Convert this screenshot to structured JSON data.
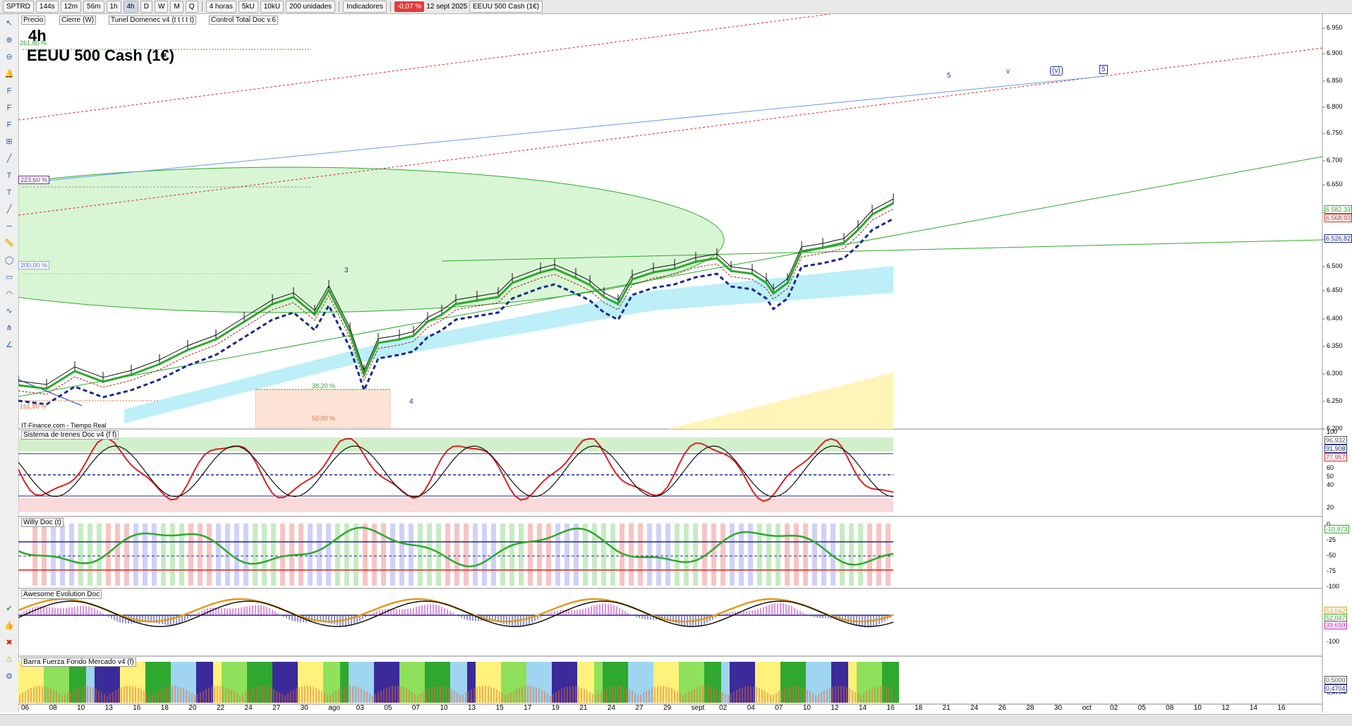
{
  "toolbar": {
    "symbol": "SPTRD",
    "intervals": [
      "144s",
      "12m",
      "56m",
      "1h",
      "4h",
      "D",
      "W",
      "M",
      "Q"
    ],
    "period": "4 horas",
    "b1": "5kU",
    "b2": "10kU",
    "units": "200 unidades",
    "indicators": "Indicadores",
    "change": "-0,07 %",
    "date": "12 sept 2025",
    "instrument": "EEUU 500 Cash (1€)"
  },
  "legend": {
    "price": "Precio",
    "close": "Cierre (W)",
    "tunnel": "Tunel Domenec v4 (t t t t t)",
    "control": "Control Total Doc v.6"
  },
  "chart": {
    "timeframe": "4h",
    "title": "EEUU 500 Cash (1€)",
    "source": "IT-Finance.com - Tiempo Real",
    "fib": [
      "261,80 %",
      "223,60 %",
      "200,00 %",
      "161,80 %",
      "38,20 %",
      "50,00 %"
    ],
    "waves": [
      "3",
      "4",
      "5",
      "v",
      "(v)",
      "5"
    ],
    "price_ticks": [
      "6.950",
      "6.900",
      "6.850",
      "6.800",
      "6.750",
      "6.700",
      "6.650",
      "6.600",
      "6.550",
      "6.500",
      "6.450",
      "6.400",
      "6.350",
      "6.300",
      "6.250",
      "6.200"
    ],
    "price_labels": [
      "6.582,33",
      "6.568,93",
      "6.526,82"
    ],
    "colors": {
      "up": "#2fa82f",
      "down": "#d42424",
      "blue": "#1a2a8c",
      "tag_green": "#2f9e2f",
      "tag_red": "#d43030"
    }
  },
  "panels": [
    {
      "title": "Sistema de trenes Doc v4 (f f)",
      "ticks": [
        "100",
        "80",
        "60",
        "50",
        "40",
        "20",
        "0"
      ],
      "labels": [
        "96,932",
        "91,908",
        "77,957"
      ]
    },
    {
      "title": "Willy Doc (t)",
      "ticks": [
        "-25",
        "-50",
        "-75",
        "-100"
      ],
      "labels": [
        "-10,973"
      ]
    },
    {
      "title": "Awesome Evolution Doc",
      "ticks": [
        "-50",
        "-100"
      ],
      "labels": [
        "53,042",
        "52,047",
        "39,699"
      ]
    },
    {
      "title": "Barra Fuerza Fondo Mercado v4 (f)",
      "ticks": [
        "0,5000",
        "0,4704"
      ],
      "labels": [
        "0,5000",
        "0,4704"
      ]
    }
  ],
  "xaxis": [
    "06",
    "08",
    "10",
    "13",
    "16",
    "18",
    "20",
    "22",
    "24",
    "27",
    "30",
    "ago",
    "03",
    "05",
    "07",
    "10",
    "13",
    "15",
    "17",
    "19",
    "21",
    "24",
    "27",
    "29",
    "sept",
    "02",
    "04",
    "07",
    "10",
    "12",
    "14",
    "16",
    "18",
    "21",
    "24",
    "26",
    "28",
    "30",
    "oct",
    "02",
    "05",
    "08",
    "10",
    "12",
    "14",
    "16"
  ]
}
